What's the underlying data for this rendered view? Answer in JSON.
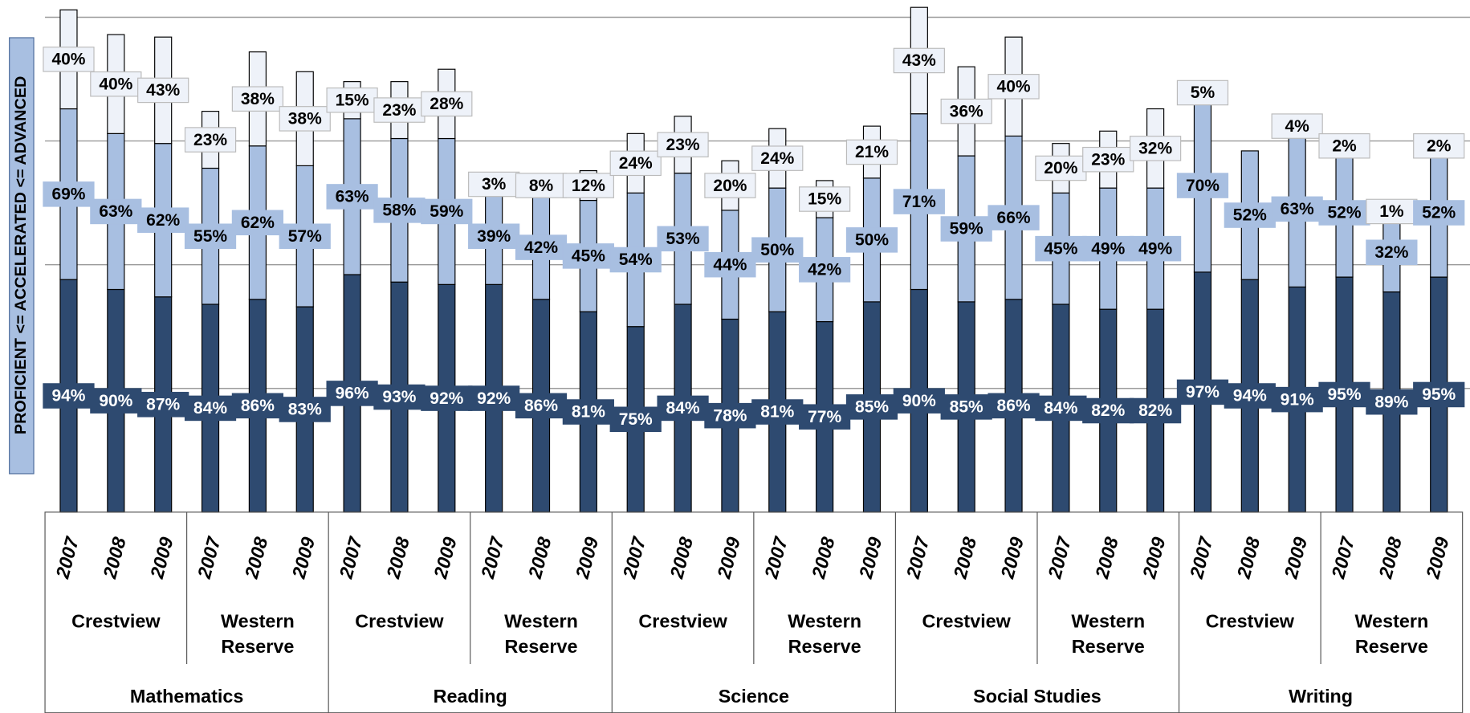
{
  "chart_data": {
    "type": "bar",
    "stacked": true,
    "y_label": "PROFICIENT <= ACCELERATED <= ADVANCED",
    "categories": [
      "2007",
      "2008",
      "2009",
      "2007",
      "2008",
      "2009",
      "2007",
      "2008",
      "2009",
      "2007",
      "2008",
      "2009",
      "2007",
      "2008",
      "2009",
      "2007",
      "2008",
      "2009",
      "2007",
      "2008",
      "2009",
      "2007",
      "2008",
      "2009",
      "2007",
      "2008",
      "2009",
      "2007",
      "2008",
      "2009"
    ],
    "school_groups": [
      "Crestview",
      "Western Reserve",
      "Crestview",
      "Western Reserve",
      "Crestview",
      "Western Reserve",
      "Crestview",
      "Western Reserve",
      "Crestview",
      "Western Reserve"
    ],
    "subject_groups": [
      "Mathematics",
      "Reading",
      "Science",
      "Social Studies",
      "Writing"
    ],
    "series": [
      {
        "name": "Proficient",
        "color": "#2e4a70",
        "label_text_color": "#ffffff",
        "values": [
          94,
          90,
          87,
          84,
          86,
          83,
          96,
          93,
          92,
          92,
          86,
          81,
          75,
          84,
          78,
          81,
          77,
          85,
          90,
          85,
          86,
          84,
          82,
          82,
          97,
          94,
          91,
          95,
          89,
          95
        ],
        "value_labels": [
          "94%",
          "90%",
          "87%",
          "84%",
          "86%",
          "83%",
          "96%",
          "93%",
          "92%",
          "92%",
          "86%",
          "81%",
          "75%",
          "84%",
          "78%",
          "81%",
          "77%",
          "85%",
          "90%",
          "85%",
          "86%",
          "84%",
          "82%",
          "82%",
          "97%",
          "94%",
          "91%",
          "95%",
          "89%",
          "95%"
        ]
      },
      {
        "name": "Accelerated",
        "color": "#a8bfe1",
        "label_text_color": "#000000",
        "values": [
          69,
          63,
          62,
          55,
          62,
          57,
          63,
          58,
          59,
          39,
          42,
          45,
          54,
          53,
          44,
          50,
          42,
          50,
          71,
          59,
          66,
          45,
          49,
          49,
          70,
          52,
          63,
          52,
          32,
          52
        ],
        "value_labels": [
          "69%",
          "63%",
          "62%",
          "55%",
          "62%",
          "57%",
          "63%",
          "58%",
          "59%",
          "39%",
          "42%",
          "45%",
          "54%",
          "53%",
          "44%",
          "50%",
          "42%",
          "50%",
          "71%",
          "59%",
          "66%",
          "45%",
          "49%",
          "49%",
          "70%",
          "52%",
          "63%",
          "52%",
          "32%",
          "52%"
        ]
      },
      {
        "name": "Advanced",
        "color": "#eef2f9",
        "label_text_color": "#000000",
        "values": [
          40,
          40,
          43,
          23,
          38,
          38,
          15,
          23,
          28,
          3,
          8,
          12,
          24,
          23,
          20,
          24,
          15,
          21,
          43,
          36,
          40,
          20,
          23,
          32,
          5,
          null,
          4,
          2,
          1,
          2
        ],
        "value_labels": [
          "40%",
          "40%",
          "43%",
          "23%",
          "38%",
          "38%",
          "15%",
          "23%",
          "28%",
          "3%",
          "8%",
          "12%",
          "24%",
          "23%",
          "20%",
          "24%",
          "15%",
          "21%",
          "43%",
          "36%",
          "40%",
          "20%",
          "23%",
          "32%",
          "5%",
          null,
          "4%",
          "2%",
          "1%",
          "2%"
        ]
      }
    ],
    "ylim": [
      0,
      205
    ],
    "yticks": [
      50,
      100,
      150,
      200
    ],
    "grid": true
  }
}
